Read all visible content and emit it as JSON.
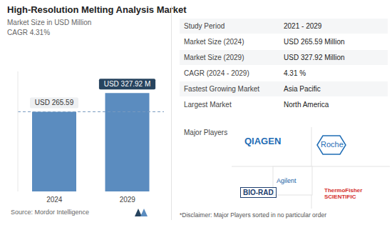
{
  "header": {
    "title": "High-Resolution Melting Analysis Market",
    "subtitle": "Market Size in USD Million",
    "cagr": "CAGR 4.31%"
  },
  "chart_data": {
    "type": "bar",
    "categories": [
      "2024",
      "2029"
    ],
    "values": [
      265.59,
      327.92
    ],
    "value_labels": [
      "USD 265.59",
      "USD 327.92 M"
    ],
    "data_labels": true,
    "color": "#5b8cbf",
    "ylim": [
      0,
      400
    ],
    "tick_labels": "x",
    "grid": false
  },
  "summary_table": {
    "rows": [
      [
        "Study Period",
        "2021 - 2029"
      ],
      [
        "Market Size (2024)",
        "USD 265.59 Million"
      ],
      [
        "Market Size (2029)",
        "USD 327.92 Million"
      ],
      [
        "CAGR (2024 - 2029)",
        "4.31 %"
      ],
      [
        "Fastest Growing Market",
        "Asia Pacific"
      ],
      [
        "Largest Market",
        "North America"
      ]
    ]
  },
  "major_players": {
    "heading": "Major Players",
    "logos": [
      "QIAGEN",
      "Roche",
      "BIO-RAD",
      "Agilent",
      "ThermoFisher SCIENTIFIC"
    ]
  },
  "source": "Source: Mordor Intelligence",
  "disclaimer": "*Disclaimer: Major Players sorted in no particular order"
}
